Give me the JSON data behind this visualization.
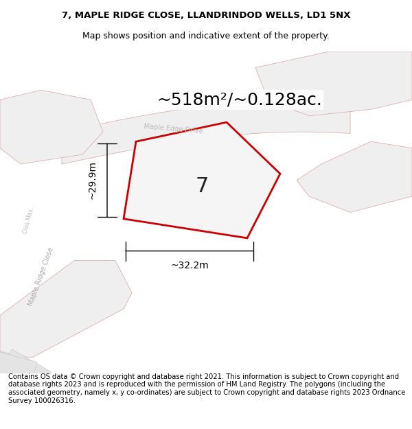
{
  "title_line1": "7, MAPLE RIDGE CLOSE, LLANDRINDOD WELLS, LD1 5NX",
  "title_line2": "Map shows position and indicative extent of the property.",
  "area_label": "~518m²/~0.128ac.",
  "dim_height": "~29.9m",
  "dim_width": "~32.2m",
  "plot_number": "7",
  "footer_text": "Contains OS data © Crown copyright and database right 2021. This information is subject to Crown copyright and database rights 2023 and is reproduced with the permission of HM Land Registry. The polygons (including the associated geometry, namely x, y co-ordinates) are subject to Crown copyright and database rights 2023 Ordnance Survey 100026316.",
  "bg_color": "#f5f5f5",
  "map_bg": "#f0f0f0",
  "road_color": "#e8e8e8",
  "building_color": "#e0e0e0",
  "plot_fill": "#f0f0f0",
  "plot_edge": "#cc0000",
  "road_outline": "#f0a0a0",
  "road_fill": "#f8f8f8",
  "road_center_color": "#d0d0d0",
  "title_fontsize": 9.5,
  "footer_fontsize": 7.2,
  "area_fontsize": 18,
  "dim_fontsize": 10,
  "plot_num_fontsize": 22
}
